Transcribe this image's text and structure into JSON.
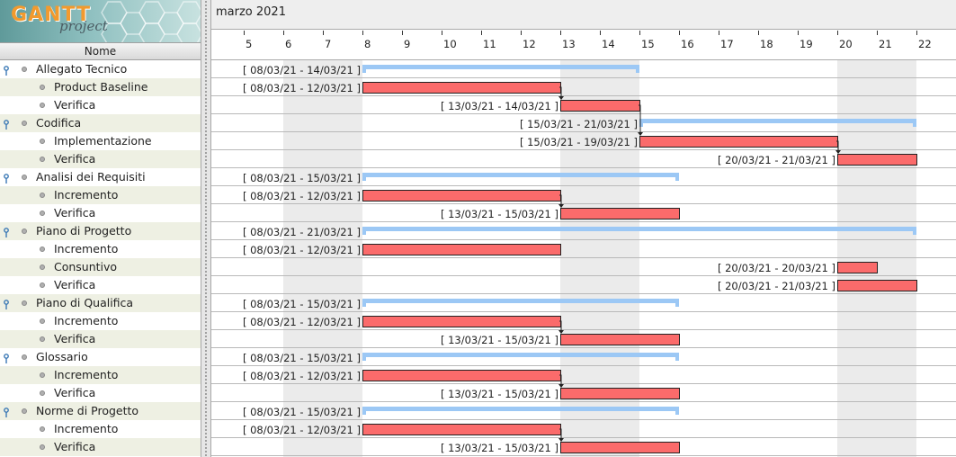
{
  "logo": {
    "title": "GANTT",
    "subtitle": "project"
  },
  "task_tree": {
    "column_header": "Nome",
    "rows": [
      {
        "name": "Allegato Tecnico",
        "level": 0
      },
      {
        "name": "Product Baseline",
        "level": 1
      },
      {
        "name": "Verifica",
        "level": 1
      },
      {
        "name": "Codifica",
        "level": 0
      },
      {
        "name": "Implementazione",
        "level": 1
      },
      {
        "name": "Verifica",
        "level": 1
      },
      {
        "name": "Analisi dei Requisiti",
        "level": 0
      },
      {
        "name": "Incremento",
        "level": 1
      },
      {
        "name": "Verifica",
        "level": 1
      },
      {
        "name": "Piano di Progetto",
        "level": 0
      },
      {
        "name": "Incremento",
        "level": 1
      },
      {
        "name": "Consuntivo",
        "level": 1
      },
      {
        "name": "Verifica",
        "level": 1
      },
      {
        "name": "Piano di Qualifica",
        "level": 0
      },
      {
        "name": "Incremento",
        "level": 1
      },
      {
        "name": "Verifica",
        "level": 1
      },
      {
        "name": "Glossario",
        "level": 0
      },
      {
        "name": "Incremento",
        "level": 1
      },
      {
        "name": "Verifica",
        "level": 1
      },
      {
        "name": "Norme di Progetto",
        "level": 0
      },
      {
        "name": "Incremento",
        "level": 1
      },
      {
        "name": "Verifica",
        "level": 1
      }
    ]
  },
  "timeline": {
    "month": "marzo 2021",
    "days": [
      "5",
      "6",
      "7",
      "8",
      "9",
      "10",
      "11",
      "12",
      "13",
      "14",
      "15",
      "16",
      "17",
      "18",
      "19",
      "20",
      "21",
      "22"
    ],
    "first_day": 5,
    "weekend_days": [
      6,
      7,
      13,
      14,
      20,
      21
    ]
  },
  "bars": [
    {
      "row": 0,
      "type": "summary",
      "start": 8,
      "end": 14,
      "label": "[ 08/03/21 - 14/03/21 ]"
    },
    {
      "row": 1,
      "type": "task",
      "start": 8,
      "end": 12,
      "label": "[ 08/03/21 - 12/03/21 ]"
    },
    {
      "row": 2,
      "type": "task",
      "start": 13,
      "end": 14,
      "label": "[ 13/03/21 - 14/03/21 ]"
    },
    {
      "row": 3,
      "type": "summary",
      "start": 15,
      "end": 21,
      "label": "[ 15/03/21 - 21/03/21 ]"
    },
    {
      "row": 4,
      "type": "task",
      "start": 15,
      "end": 19,
      "label": "[ 15/03/21 - 19/03/21 ]"
    },
    {
      "row": 5,
      "type": "task",
      "start": 20,
      "end": 21,
      "label": "[ 20/03/21 - 21/03/21 ]"
    },
    {
      "row": 6,
      "type": "summary",
      "start": 8,
      "end": 15,
      "label": "[ 08/03/21 - 15/03/21 ]"
    },
    {
      "row": 7,
      "type": "task",
      "start": 8,
      "end": 12,
      "label": "[ 08/03/21 - 12/03/21 ]"
    },
    {
      "row": 8,
      "type": "task",
      "start": 13,
      "end": 15,
      "label": "[ 13/03/21 - 15/03/21 ]"
    },
    {
      "row": 9,
      "type": "summary",
      "start": 8,
      "end": 21,
      "label": "[ 08/03/21 - 21/03/21 ]"
    },
    {
      "row": 10,
      "type": "task",
      "start": 8,
      "end": 12,
      "label": "[ 08/03/21 - 12/03/21 ]"
    },
    {
      "row": 11,
      "type": "task",
      "start": 20,
      "end": 20,
      "label": "[ 20/03/21 - 20/03/21 ]"
    },
    {
      "row": 12,
      "type": "task",
      "start": 20,
      "end": 21,
      "label": "[ 20/03/21 - 21/03/21 ]"
    },
    {
      "row": 13,
      "type": "summary",
      "start": 8,
      "end": 15,
      "label": "[ 08/03/21 - 15/03/21 ]"
    },
    {
      "row": 14,
      "type": "task",
      "start": 8,
      "end": 12,
      "label": "[ 08/03/21 - 12/03/21 ]"
    },
    {
      "row": 15,
      "type": "task",
      "start": 13,
      "end": 15,
      "label": "[ 13/03/21 - 15/03/21 ]"
    },
    {
      "row": 16,
      "type": "summary",
      "start": 8,
      "end": 15,
      "label": "[ 08/03/21 - 15/03/21 ]"
    },
    {
      "row": 17,
      "type": "task",
      "start": 8,
      "end": 12,
      "label": "[ 08/03/21 - 12/03/21 ]"
    },
    {
      "row": 18,
      "type": "task",
      "start": 13,
      "end": 15,
      "label": "[ 13/03/21 - 15/03/21 ]"
    },
    {
      "row": 19,
      "type": "summary",
      "start": 8,
      "end": 15,
      "label": "[ 08/03/21 - 15/03/21 ]"
    },
    {
      "row": 20,
      "type": "task",
      "start": 8,
      "end": 12,
      "label": "[ 08/03/21 - 12/03/21 ]"
    },
    {
      "row": 21,
      "type": "task",
      "start": 13,
      "end": 15,
      "label": "[ 13/03/21 - 15/03/21 ]"
    }
  ],
  "dependencies": [
    {
      "from_row": 1,
      "to_row": 2
    },
    {
      "from_row": 2,
      "to_row": 4
    },
    {
      "from_row": 4,
      "to_row": 5
    },
    {
      "from_row": 7,
      "to_row": 8
    },
    {
      "from_row": 14,
      "to_row": 15
    },
    {
      "from_row": 17,
      "to_row": 18
    },
    {
      "from_row": 20,
      "to_row": 21
    }
  ],
  "colors": {
    "task_bar": "#fb6b6b",
    "summary_bar": "#9cc8f5",
    "weekend": "#ebebeb",
    "alt_row": "#eef0e3",
    "logo_accent": "#f29a2e",
    "tree_handle": "#3a78b5"
  }
}
